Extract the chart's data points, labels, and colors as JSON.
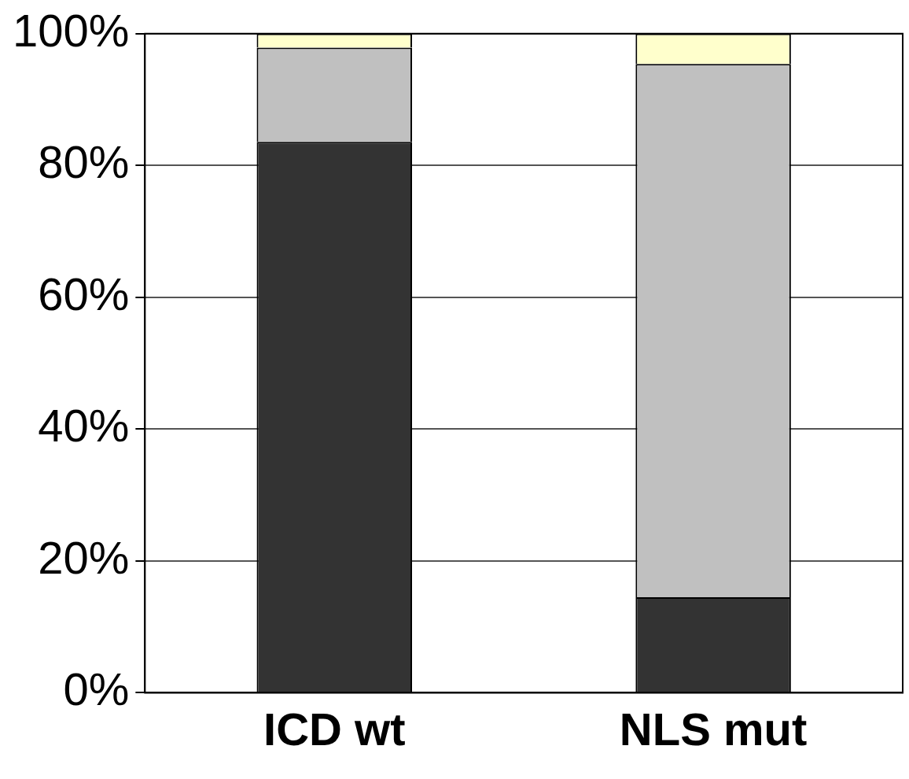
{
  "chart_data": {
    "type": "bar",
    "stacked": true,
    "categories": [
      "ICD wt",
      "NLS mut"
    ],
    "series": [
      {
        "color": "#333333",
        "values": [
          83.6,
          14.5
        ]
      },
      {
        "color": "#c0c0c0",
        "values": [
          14.3,
          80.9
        ]
      },
      {
        "color": "#ffffcc",
        "values": [
          2.1,
          4.6
        ]
      }
    ],
    "ylim": [
      0,
      100
    ],
    "yticks": [
      {
        "value": 0,
        "label": "0%"
      },
      {
        "value": 20,
        "label": "20%"
      },
      {
        "value": 40,
        "label": "40%"
      },
      {
        "value": 60,
        "label": "60%"
      },
      {
        "value": 80,
        "label": "80%"
      },
      {
        "value": 100,
        "label": "100%"
      }
    ],
    "grid": "y",
    "legend": false
  }
}
